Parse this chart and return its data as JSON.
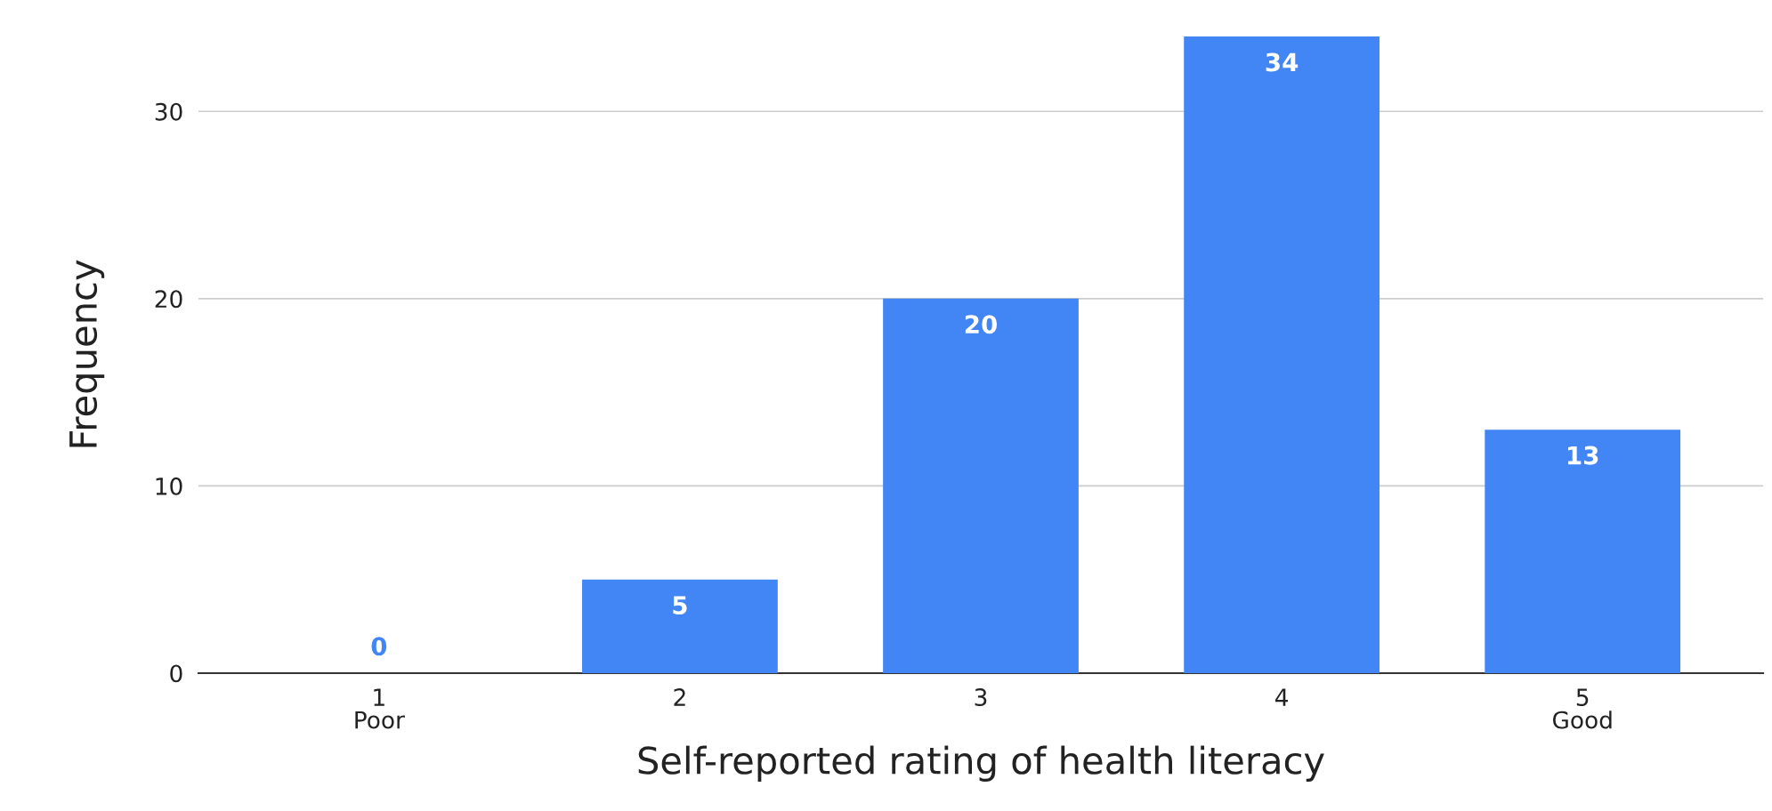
{
  "chart_data": {
    "type": "bar",
    "xlabel": "Self-reported rating of health literacy",
    "ylabel": "Frequency",
    "categories": [
      "1\nPoor",
      "2",
      "3",
      "4",
      "5\nGood"
    ],
    "values": [
      0,
      5,
      20,
      34,
      13
    ],
    "color": "#4285f4",
    "ylim": [
      0,
      34
    ],
    "yticks": [
      0,
      10,
      20,
      30
    ],
    "grid": "y",
    "data_labels": true
  }
}
